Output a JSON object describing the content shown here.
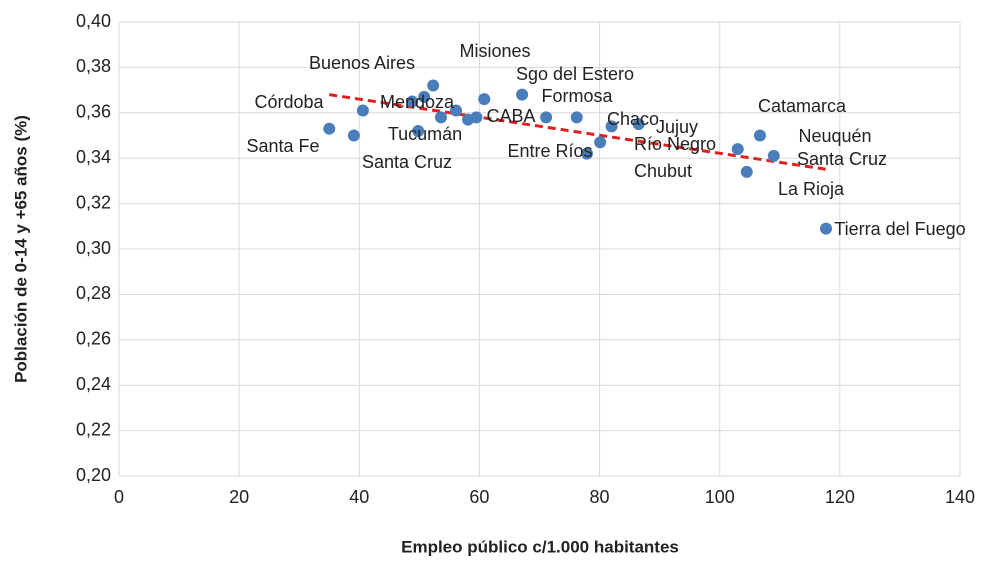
{
  "chart_data": {
    "type": "scatter",
    "x_label": "Empleo público c/1.000 habitantes",
    "y_label": "Población de 0-14 y +65 años (%)",
    "color": "#4a7ebb",
    "x": [
      35.0,
      39.1,
      40.6,
      48.8,
      50.8,
      52.3,
      49.8,
      53.6,
      56.1,
      58.1,
      59.5,
      60.8,
      67.1,
      71.1,
      76.2,
      77.9,
      80.1,
      82.0,
      86.5,
      103.0,
      106.7,
      104.5,
      109.0,
      117.7
    ],
    "values": [
      0.353,
      0.35,
      0.361,
      0.365,
      0.367,
      0.372,
      0.352,
      0.358,
      0.361,
      0.357,
      0.358,
      0.366,
      0.368,
      0.358,
      0.358,
      0.342,
      0.347,
      0.354,
      0.355,
      0.344,
      0.35,
      0.334,
      0.341,
      0.309
    ],
    "labels": [
      "Santa Fe",
      null,
      "Córdoba",
      null,
      "Mendoza",
      "Buenos Aires",
      "Santa Cruz",
      "Tucumán",
      null,
      null,
      "CABA",
      "Misiones",
      "Sgo del Estero",
      "Entre Ríos",
      "Formosa",
      "Chubut",
      "Chaco",
      "Jujuy",
      "Río Negro",
      "Catamarca",
      "Neuquén",
      "La Rioja",
      "Santa Cruz",
      "Tierra del Fuego"
    ],
    "trendline": {
      "color": "#e02020",
      "x": [
        35,
        118
      ],
      "y": [
        0.368,
        0.335
      ]
    },
    "xlim": [
      0,
      140
    ],
    "xticks": [
      0,
      20,
      40,
      60,
      80,
      100,
      120,
      140
    ],
    "ylim": [
      0.2,
      0.4
    ],
    "yticks": [
      {
        "value": 0.2,
        "label": "0,20"
      },
      {
        "value": 0.22,
        "label": "0,22"
      },
      {
        "value": 0.24,
        "label": "0,24"
      },
      {
        "value": 0.26,
        "label": "0,26"
      },
      {
        "value": 0.28,
        "label": "0,28"
      },
      {
        "value": 0.3,
        "label": "0,30"
      },
      {
        "value": 0.32,
        "label": "0,32"
      },
      {
        "value": 0.34,
        "label": "0,34"
      },
      {
        "value": 0.36,
        "label": "0,36"
      },
      {
        "value": 0.38,
        "label": "0,38"
      },
      {
        "value": 0.4,
        "label": "0,40"
      }
    ],
    "grid": true
  }
}
